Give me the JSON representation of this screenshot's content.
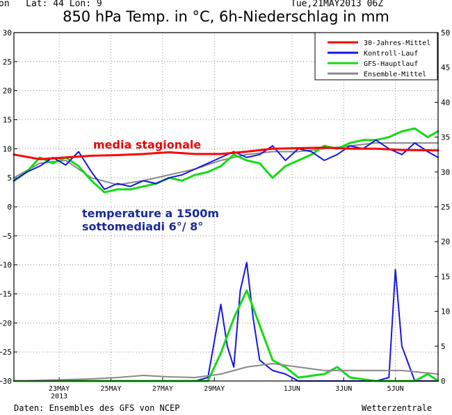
{
  "header": {
    "latlon": "on   Lat: 44 Lon: 9",
    "date": "Tue,21MAY2013 06Z",
    "title": "850 hPa Temp. in °C, 6h-Niederschlag in mm"
  },
  "footer": {
    "source": "Daten: Ensembles des GFS von NCEP",
    "brand": "Wetterzentrale"
  },
  "annotations": {
    "seasonal": "media stagionale",
    "temp1": "temperature a 1500m",
    "temp2": "sottomediadi 6°/ 8°"
  },
  "chart_data": {
    "type": "line",
    "title": "850 hPa Temp. in °C, 6h-Niederschlag in mm",
    "x_range": [
      0,
      16.4
    ],
    "x_unit": "days from 21 May 2013 06Z",
    "x_ticks": [
      {
        "x": 1.75,
        "label": "23MAY",
        "label2": "2013"
      },
      {
        "x": 3.75,
        "label": "25MAY"
      },
      {
        "x": 5.75,
        "label": "27MAY"
      },
      {
        "x": 7.75,
        "label": "29MAY"
      },
      {
        "x": 10.75,
        "label": "1JUN"
      },
      {
        "x": 12.75,
        "label": "3JUN"
      },
      {
        "x": 14.75,
        "label": "5JUN"
      }
    ],
    "y_left": {
      "range": [
        -30,
        30
      ],
      "ticks": [
        30,
        25,
        20,
        15,
        10,
        5,
        0,
        -5,
        -10,
        -15,
        -20,
        -25,
        -30
      ],
      "tick_labels": [
        "30",
        "25",
        "20",
        "15",
        "10",
        "5",
        "0",
        "−5",
        "−10",
        "−15",
        "−20",
        "−25",
        "−30"
      ]
    },
    "y_right": {
      "range": [
        0,
        50
      ],
      "ticks": [
        50,
        45,
        40,
        35,
        30,
        25,
        20,
        15,
        10,
        5,
        0
      ],
      "tick_labels": [
        "50",
        "45",
        "40",
        "35",
        "30",
        "25",
        "20",
        "15",
        "10",
        "5",
        "0"
      ]
    },
    "grid": true,
    "legend_position": "top-right",
    "legend": [
      {
        "name": "30-Jahres-Mittel",
        "color": "#ff0000"
      },
      {
        "name": "Kontroll-Lauf",
        "color": "#1515e6"
      },
      {
        "name": "GFS-Hauptlauf",
        "color": "#11dd11"
      },
      {
        "name": "Ensemble-Mittel",
        "color": "#888888"
      }
    ],
    "temperature_series": [
      {
        "name": "30-Jahres-Mittel",
        "color": "#ff0000",
        "width": 3,
        "x": [
          0,
          1,
          2,
          3,
          4,
          5,
          6,
          7,
          8,
          9,
          10,
          11,
          12,
          13,
          14,
          15,
          16.4
        ],
        "values": [
          9,
          8.2,
          8.5,
          8.8,
          8.9,
          9.1,
          9.4,
          9.1,
          9.1,
          9.5,
          10,
          10.1,
          10.2,
          10,
          10,
          9.8,
          9.7
        ]
      },
      {
        "name": "Kontroll-Lauf",
        "color": "#1515e6",
        "width": 2,
        "x": [
          0,
          0.5,
          1,
          1.5,
          2,
          2.5,
          3,
          3.5,
          4,
          4.5,
          5,
          5.5,
          6,
          6.5,
          7,
          7.5,
          8,
          8.5,
          9,
          9.5,
          10,
          10.5,
          11,
          11.5,
          12,
          12.5,
          13,
          13.5,
          14,
          14.5,
          15,
          15.5,
          16,
          16.4
        ],
        "values": [
          4.5,
          6,
          7,
          8.5,
          7.2,
          9.5,
          6,
          3,
          4,
          3.5,
          4.5,
          4,
          5,
          5.5,
          6.5,
          7.5,
          8.5,
          9.5,
          8.5,
          9,
          10.5,
          8,
          10,
          9.5,
          8,
          9,
          10.5,
          10,
          11.5,
          10,
          9,
          11,
          9.5,
          8.5
        ]
      },
      {
        "name": "GFS-Hauptlauf",
        "color": "#11dd11",
        "width": 3,
        "x": [
          0,
          0.5,
          1,
          1.5,
          2,
          2.5,
          3,
          3.5,
          4,
          4.5,
          5,
          5.5,
          6,
          6.5,
          7,
          7.5,
          8,
          8.5,
          9,
          9.5,
          10,
          10.5,
          11,
          11.5,
          12,
          12.5,
          13,
          13.5,
          14,
          14.5,
          15,
          15.5,
          16,
          16.4
        ],
        "values": [
          4.5,
          6,
          8.5,
          7.5,
          8.5,
          7,
          4.5,
          2.5,
          3,
          3,
          3.5,
          4,
          5,
          4.5,
          5.5,
          6,
          7,
          9,
          8,
          7.5,
          5,
          7,
          8,
          9,
          10.5,
          10,
          11,
          11.5,
          11.5,
          12,
          13,
          13.5,
          12,
          13
        ]
      },
      {
        "name": "Ensemble-Mittel",
        "color": "#888888",
        "width": 2,
        "x": [
          0,
          1,
          2,
          3,
          4,
          5,
          6,
          7,
          8,
          9,
          10,
          11,
          12,
          13,
          14,
          15,
          16.4
        ],
        "values": [
          5,
          7.5,
          8,
          5,
          3.8,
          4.5,
          5.5,
          6.5,
          8,
          9,
          9.5,
          9.5,
          10,
          10.5,
          11,
          11,
          11
        ]
      }
    ],
    "precipitation_series": [
      {
        "name": "Kontroll-Lauf",
        "color": "#1515e6",
        "width": 2,
        "x": [
          0,
          1,
          2,
          3,
          4,
          5,
          6,
          7,
          7.5,
          8,
          8.25,
          8.5,
          8.75,
          9,
          9.25,
          9.5,
          10,
          10.5,
          11,
          12,
          13,
          14,
          14.5,
          14.75,
          15,
          15.5,
          16,
          16.4
        ],
        "values": [
          0,
          0,
          0,
          0,
          0,
          0,
          0,
          0,
          0.5,
          11,
          5,
          2,
          13,
          17,
          9,
          3,
          1.5,
          1,
          0,
          0,
          0,
          0,
          0.5,
          16,
          5,
          0,
          0,
          0
        ]
      },
      {
        "name": "GFS-Hauptlauf",
        "color": "#11dd11",
        "width": 3,
        "x": [
          0,
          1,
          2,
          3,
          4,
          5,
          6,
          7,
          7.5,
          8,
          8.5,
          9,
          9.5,
          10,
          10.5,
          11,
          12,
          12.5,
          13,
          14,
          15,
          15.5,
          16,
          16.4
        ],
        "values": [
          0,
          0,
          0,
          0,
          0,
          0,
          0,
          0,
          0,
          4,
          9,
          13,
          8,
          3,
          2,
          0.5,
          1,
          2,
          0.5,
          0,
          0,
          0,
          1,
          0
        ]
      },
      {
        "name": "Ensemble-Mittel",
        "color": "#888888",
        "width": 2,
        "x": [
          0,
          1,
          2,
          3,
          4,
          5,
          6,
          7,
          8,
          9,
          10,
          11,
          12,
          13,
          14,
          15,
          16.4
        ],
        "values": [
          0,
          0.1,
          0.2,
          0.3,
          0.5,
          0.8,
          0.6,
          0.5,
          1,
          2,
          2.5,
          2,
          1.5,
          1.5,
          1.5,
          1.5,
          1
        ]
      }
    ]
  }
}
